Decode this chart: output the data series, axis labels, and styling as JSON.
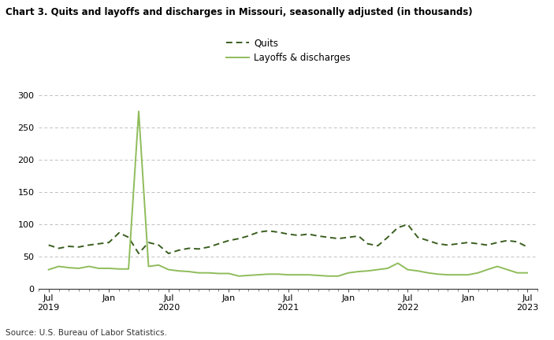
{
  "title": "Chart 3. Quits and layoffs and discharges in Missouri, seasonally adjusted (in thousands)",
  "source": "Source: U.S. Bureau of Labor Statistics.",
  "quits_color": "#3a5e1f",
  "layoffs_color": "#8fbc5a",
  "background_color": "#ffffff",
  "grid_color": "#c0c0c0",
  "ylim": [
    0,
    300
  ],
  "yticks": [
    0,
    50,
    100,
    150,
    200,
    250,
    300
  ],
  "legend_labels": [
    "Quits",
    "Layoffs & discharges"
  ],
  "quits": [
    68,
    63,
    66,
    65,
    68,
    70,
    72,
    87,
    80,
    55,
    72,
    68,
    55,
    60,
    63,
    62,
    65,
    70,
    75,
    78,
    82,
    88,
    90,
    88,
    85,
    83,
    85,
    82,
    80,
    78,
    80,
    82,
    70,
    67,
    80,
    95,
    100,
    80,
    75,
    70,
    68,
    70,
    72,
    70,
    68,
    72,
    75,
    73,
    65
  ],
  "layoffs": [
    30,
    35,
    33,
    32,
    35,
    32,
    32,
    31,
    31,
    275,
    35,
    37,
    30,
    28,
    27,
    25,
    25,
    24,
    24,
    20,
    21,
    22,
    23,
    23,
    22,
    22,
    22,
    21,
    20,
    20,
    25,
    27,
    28,
    30,
    32,
    40,
    30,
    28,
    25,
    23,
    22,
    22,
    22,
    25,
    30,
    35,
    30,
    25,
    25
  ]
}
